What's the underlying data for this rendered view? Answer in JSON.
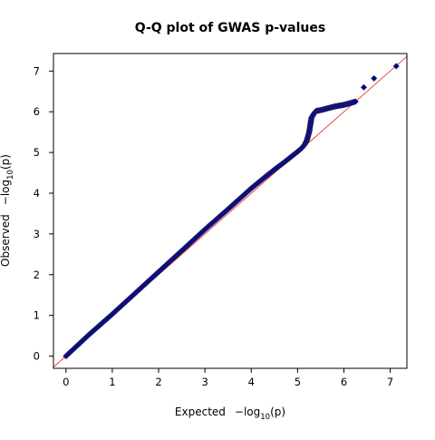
{
  "chart_data": {
    "type": "scatter",
    "title": "Q-Q plot of GWAS p-values",
    "xlabel": {
      "text": "Expected",
      "math_prefix": "−log",
      "math_sub": "10",
      "math_arg": "(p)"
    },
    "ylabel": {
      "text": "Observed",
      "math_prefix": "−log",
      "math_sub": "10",
      "math_arg": "(p)"
    },
    "xlim": [
      -0.27,
      7.36
    ],
    "ylim": [
      -0.3,
      7.43
    ],
    "x_ticks": [
      0,
      1,
      2,
      3,
      4,
      5,
      6,
      7
    ],
    "y_ticks": [
      0,
      1,
      2,
      3,
      4,
      5,
      6,
      7
    ],
    "grid": false,
    "reference_line": {
      "from": [
        -0.3,
        -0.3
      ],
      "to": [
        7.4,
        7.4
      ],
      "color": "#e8453c"
    },
    "marker": {
      "shape": "diamond",
      "fill": "#00008b",
      "edge": "#1c1c6b"
    },
    "series": [
      {
        "values": [
          [
            0.0,
            0.0
          ],
          [
            0.5,
            0.53
          ],
          [
            1.0,
            1.03
          ],
          [
            1.5,
            1.55
          ],
          [
            2.0,
            2.07
          ],
          [
            2.5,
            2.59
          ],
          [
            3.0,
            3.11
          ],
          [
            3.5,
            3.61
          ],
          [
            4.0,
            4.12
          ],
          [
            4.3,
            4.4
          ],
          [
            4.5,
            4.58
          ],
          [
            4.7,
            4.75
          ],
          [
            4.9,
            4.93
          ],
          [
            5.0,
            5.02
          ],
          [
            5.1,
            5.12
          ],
          [
            5.15,
            5.19
          ],
          [
            5.2,
            5.3
          ],
          [
            5.25,
            5.5
          ],
          [
            5.3,
            5.85
          ],
          [
            5.35,
            5.95
          ],
          [
            5.4,
            6.02
          ],
          [
            5.5,
            6.04
          ],
          [
            5.6,
            6.07
          ],
          [
            5.7,
            6.1
          ],
          [
            5.8,
            6.13
          ],
          [
            5.9,
            6.15
          ],
          [
            6.0,
            6.17
          ],
          [
            6.1,
            6.2
          ],
          [
            6.25,
            6.25
          ],
          [
            6.43,
            6.6
          ],
          [
            6.65,
            6.82
          ],
          [
            7.13,
            7.12
          ]
        ]
      }
    ]
  }
}
